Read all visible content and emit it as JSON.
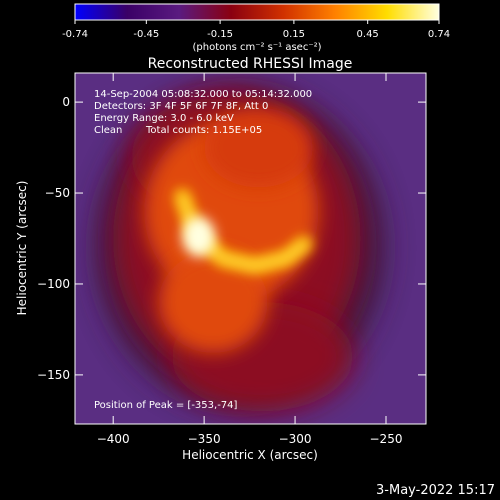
{
  "chart_data": {
    "type": "heatmap",
    "title": "Reconstructed RHESSI Image",
    "xlabel": "Heliocentric X (arcsec)",
    "ylabel": "Heliocentric Y (arcsec)",
    "xlim": [
      -421,
      -228
    ],
    "ylim": [
      -177,
      16
    ],
    "x_ticks": [
      -400,
      -350,
      -300,
      -250
    ],
    "y_ticks": [
      0,
      -50,
      -100,
      -150
    ],
    "colorbar": {
      "min": -0.74,
      "max": 0.74,
      "ticks": [
        "-0.74",
        "-0.45",
        "-0.15",
        "0.15",
        "0.45",
        "0.74"
      ],
      "unit_label": "(photons cm⁻² s⁻¹ asec⁻²)",
      "colors": [
        "#0000ff",
        "#3a0066",
        "#5a1a80",
        "#8a0010",
        "#d03000",
        "#ff8000",
        "#ffdd00",
        "#ffffe0"
      ]
    },
    "annotations": {
      "time_range": "14-Sep-2004 05:08:32.000 to 05:14:32.000",
      "detectors": "Detectors: 3F 4F 5F 6F 7F 8F, Att 0",
      "energy_range": "Energy Range: 3.0 - 6.0 keV",
      "method": "Clean",
      "total_counts": "Total counts: 1.15E+05",
      "peak_position": "Position of Peak = [-353,-74]"
    },
    "peak": [
      -353,
      -74
    ],
    "source_colors": {
      "background": "#5a2e82",
      "halo": "#8c1020",
      "core": "#e04a08",
      "loop": "#ffc000",
      "peak": "#ffffe0"
    }
  },
  "footer": {
    "date_stamp": "3-May-2022 15:17"
  }
}
